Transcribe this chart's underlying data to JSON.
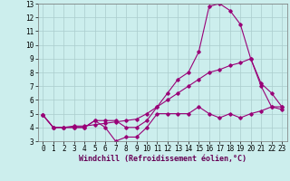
{
  "xlabel": "Windchill (Refroidissement éolien,°C)",
  "xlim": [
    -0.5,
    23.5
  ],
  "ylim": [
    3,
    13
  ],
  "yticks": [
    3,
    4,
    5,
    6,
    7,
    8,
    9,
    10,
    11,
    12,
    13
  ],
  "xticks": [
    0,
    1,
    2,
    3,
    4,
    5,
    6,
    7,
    8,
    9,
    10,
    11,
    12,
    13,
    14,
    15,
    16,
    17,
    18,
    19,
    20,
    21,
    22,
    23
  ],
  "background_color": "#cceeed",
  "grid_color": "#aacccc",
  "line_color": "#990077",
  "line1_x": [
    0,
    1,
    2,
    3,
    4,
    5,
    6,
    7,
    8,
    9,
    10,
    11,
    12,
    13,
    14,
    15,
    16,
    17,
    18,
    19,
    20,
    21,
    22,
    23
  ],
  "line1_y": [
    4.9,
    4.0,
    4.0,
    4.0,
    4.0,
    4.5,
    4.0,
    3.0,
    3.3,
    3.3,
    4.0,
    5.0,
    5.0,
    5.0,
    5.0,
    5.5,
    5.0,
    4.7,
    5.0,
    4.7,
    5.0,
    5.2,
    5.5,
    5.5
  ],
  "line2_x": [
    0,
    1,
    2,
    3,
    4,
    5,
    6,
    7,
    8,
    9,
    10,
    11,
    12,
    13,
    14,
    15,
    16,
    17,
    18,
    19,
    20,
    21,
    22,
    23
  ],
  "line2_y": [
    4.9,
    4.0,
    4.0,
    4.0,
    4.0,
    4.5,
    4.5,
    4.5,
    4.0,
    4.0,
    4.5,
    5.5,
    6.5,
    7.5,
    8.0,
    9.5,
    12.8,
    13.0,
    12.5,
    11.5,
    9.0,
    7.2,
    6.5,
    5.5
  ],
  "line3_x": [
    0,
    1,
    2,
    3,
    4,
    5,
    6,
    7,
    8,
    9,
    10,
    11,
    12,
    13,
    14,
    15,
    16,
    17,
    18,
    19,
    20,
    21,
    22,
    23
  ],
  "line3_y": [
    4.9,
    4.0,
    4.0,
    4.1,
    4.1,
    4.2,
    4.3,
    4.4,
    4.5,
    4.6,
    5.0,
    5.5,
    6.0,
    6.5,
    7.0,
    7.5,
    8.0,
    8.2,
    8.5,
    8.7,
    9.0,
    7.0,
    5.5,
    5.3
  ],
  "tick_fontsize": 5.5,
  "xlabel_fontsize": 6.0
}
